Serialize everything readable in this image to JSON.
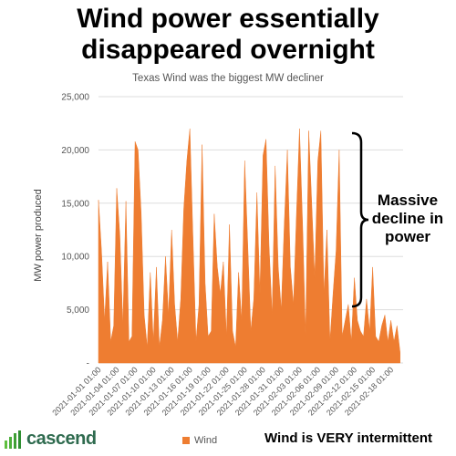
{
  "headline": {
    "line1": "Wind power essentially",
    "line2": "disappeared overnight"
  },
  "annotation": {
    "line1": "Massive",
    "line2": "decline in",
    "line3": "power"
  },
  "footer": {
    "logo_text": "cascend",
    "note": "Wind is VERY intermittent"
  },
  "colors": {
    "series": "#ee7d31",
    "gridline": "#dddddd",
    "axis_text": "#555555",
    "logo": "#2f6b4f"
  },
  "chart_data": {
    "type": "area",
    "title": "Texas Wind was the biggest MW decliner",
    "ylabel": "MW power produced",
    "xlabel": "",
    "ylim": [
      0,
      25000
    ],
    "yticks": [
      0,
      5000,
      10000,
      15000,
      20000,
      25000
    ],
    "ytick_labels": [
      "-",
      "5,000",
      "10,000",
      "15,000",
      "20,000",
      "25,000"
    ],
    "grid": true,
    "legend": "bottom",
    "xlim": [
      "2021-01-01",
      "2021-02-20"
    ],
    "xtick_labels": [
      "2021-01-01 01:00",
      "2021-01-04 01:00",
      "2021-01-07 01:00",
      "2021-01-10 01:00",
      "2021-01-13 01:00",
      "2021-01-16 01:00",
      "2021-01-19 01:00",
      "2021-01-22 01:00",
      "2021-01-25 01:00",
      "2021-01-28 01:00",
      "2021-01-31 01:00",
      "2021-02-03 01:00",
      "2021-02-06 01:00",
      "2021-02-09 01:00",
      "2021-02-12 01:00",
      "2021-02-15 01:00",
      "2021-02-18 01:00"
    ],
    "series": [
      {
        "name": "Wind",
        "x": [
          "2021-01-01",
          "2021-01-01 12:00",
          "2021-01-02",
          "2021-01-02 12:00",
          "2021-01-03",
          "2021-01-03 12:00",
          "2021-01-04",
          "2021-01-04 12:00",
          "2021-01-05",
          "2021-01-05 12:00",
          "2021-01-06",
          "2021-01-06 12:00",
          "2021-01-07",
          "2021-01-07 12:00",
          "2021-01-08",
          "2021-01-08 12:00",
          "2021-01-09",
          "2021-01-09 12:00",
          "2021-01-10",
          "2021-01-10 12:00",
          "2021-01-11",
          "2021-01-11 12:00",
          "2021-01-12",
          "2021-01-12 12:00",
          "2021-01-13",
          "2021-01-13 12:00",
          "2021-01-14",
          "2021-01-14 12:00",
          "2021-01-15",
          "2021-01-15 12:00",
          "2021-01-16",
          "2021-01-16 12:00",
          "2021-01-17",
          "2021-01-17 12:00",
          "2021-01-18",
          "2021-01-18 12:00",
          "2021-01-19",
          "2021-01-19 12:00",
          "2021-01-20",
          "2021-01-20 12:00",
          "2021-01-21",
          "2021-01-21 12:00",
          "2021-01-22",
          "2021-01-22 12:00",
          "2021-01-23",
          "2021-01-23 12:00",
          "2021-01-24",
          "2021-01-24 12:00",
          "2021-01-25",
          "2021-01-25 12:00",
          "2021-01-26",
          "2021-01-26 12:00",
          "2021-01-27",
          "2021-01-27 12:00",
          "2021-01-28",
          "2021-01-28 12:00",
          "2021-01-29",
          "2021-01-29 12:00",
          "2021-01-30",
          "2021-01-30 12:00",
          "2021-01-31",
          "2021-01-31 12:00",
          "2021-02-01",
          "2021-02-01 12:00",
          "2021-02-02",
          "2021-02-02 12:00",
          "2021-02-03",
          "2021-02-03 12:00",
          "2021-02-04",
          "2021-02-04 12:00",
          "2021-02-05",
          "2021-02-05 12:00",
          "2021-02-06",
          "2021-02-06 12:00",
          "2021-02-07",
          "2021-02-07 12:00",
          "2021-02-08",
          "2021-02-08 12:00",
          "2021-02-09",
          "2021-02-09 12:00",
          "2021-02-10",
          "2021-02-10 12:00",
          "2021-02-11",
          "2021-02-11 12:00",
          "2021-02-12",
          "2021-02-12 12:00",
          "2021-02-13",
          "2021-02-13 12:00",
          "2021-02-14",
          "2021-02-14 12:00",
          "2021-02-15",
          "2021-02-15 12:00",
          "2021-02-16",
          "2021-02-16 12:00",
          "2021-02-17",
          "2021-02-17 12:00",
          "2021-02-18",
          "2021-02-18 12:00",
          "2021-02-19",
          "2021-02-19 12:00"
        ],
        "values": [
          15300,
          10500,
          4000,
          9500,
          2000,
          3500,
          16400,
          12000,
          3500,
          15200,
          2000,
          2500,
          20800,
          20000,
          14000,
          4500,
          1500,
          8500,
          2000,
          9000,
          1500,
          4000,
          10000,
          4500,
          12500,
          5500,
          2000,
          6000,
          14500,
          19000,
          22000,
          12000,
          2000,
          5500,
          20500,
          7500,
          2500,
          3000,
          14000,
          9000,
          6500,
          9500,
          2500,
          13000,
          3000,
          1500,
          8500,
          4000,
          19000,
          11000,
          3000,
          6000,
          16000,
          6500,
          19500,
          21000,
          11000,
          4500,
          18500,
          9000,
          5000,
          13000,
          20000,
          9000,
          5500,
          14000,
          22000,
          13000,
          2500,
          21800,
          15000,
          8000,
          19000,
          21800,
          6500,
          12500,
          2000,
          6500,
          10500,
          20000,
          2500,
          4000,
          5500,
          2000,
          8000,
          4000,
          3000,
          2500,
          6000,
          3000,
          9000,
          2500,
          2000,
          3500,
          4500,
          2000,
          4000,
          2000,
          3500,
          1000
        ]
      }
    ]
  }
}
